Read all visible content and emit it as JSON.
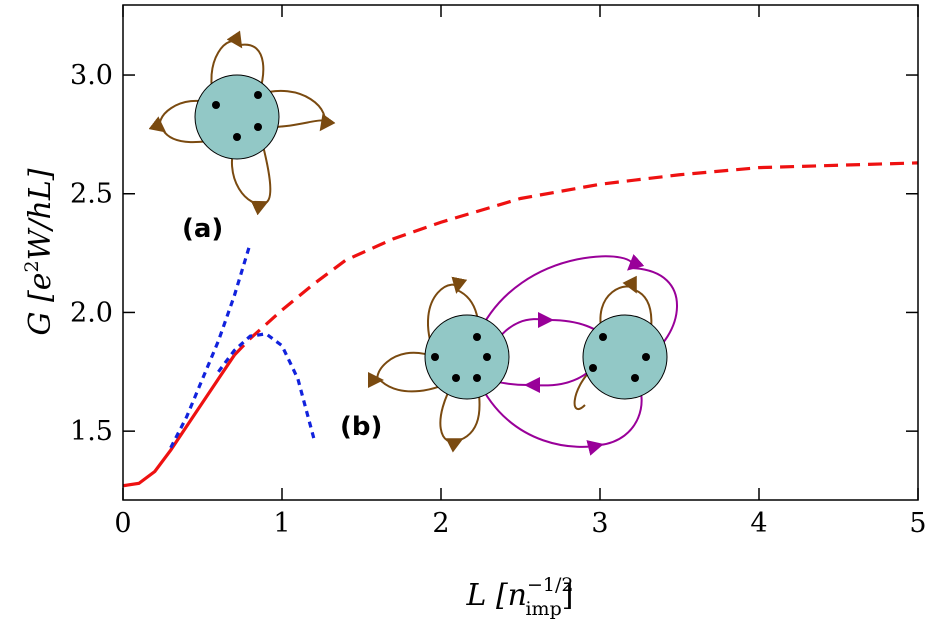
{
  "chart_data": {
    "type": "line",
    "xlabel": {
      "main": "L [n",
      "sup": "−1/2",
      "sub": "imp",
      "close": "]"
    },
    "ylabel": {
      "main": "G [e",
      "sup": "2",
      "rest": "W/hL]"
    },
    "xlim": [
      0,
      5
    ],
    "ylim": [
      1.21,
      3.295
    ],
    "xticks": [
      0,
      1,
      2,
      3,
      4,
      5
    ],
    "yticks": [
      1.5,
      {
        "value": 2,
        "label": "2.0"
      },
      2.5,
      {
        "value": 3,
        "label": "3.0"
      }
    ],
    "annotations": [
      "(a)",
      "(b)"
    ],
    "series": [
      {
        "color": "#ee1111",
        "dash": "solid",
        "x": [
          0,
          0.1,
          0.2,
          0.3,
          0.4,
          0.5,
          0.6,
          0.7
        ],
        "values": [
          1.27,
          1.28,
          1.33,
          1.42,
          1.52,
          1.62,
          1.72,
          1.82
        ]
      },
      {
        "color": "#ee1111",
        "dash": "dashed",
        "x": [
          0.7,
          0.8,
          1.0,
          1.2,
          1.4,
          1.7,
          2.0,
          2.5,
          3.0,
          3.5,
          4.0,
          4.5,
          5.0
        ],
        "values": [
          1.82,
          1.89,
          2.01,
          2.12,
          2.22,
          2.31,
          2.38,
          2.48,
          2.54,
          2.58,
          2.61,
          2.62,
          2.63
        ]
      },
      {
        "color": "#1122dd",
        "dash": "dotted",
        "x": [
          0.3,
          0.4,
          0.5,
          0.6,
          0.7,
          0.8
        ],
        "values": [
          1.43,
          1.56,
          1.72,
          1.88,
          2.07,
          2.29
        ]
      },
      {
        "color": "#1122dd",
        "dash": "dotted",
        "x": [
          0.6,
          0.7,
          0.8,
          0.9,
          1.0,
          1.1,
          1.2
        ],
        "values": [
          1.75,
          1.84,
          1.9,
          1.91,
          1.86,
          1.72,
          1.47
        ]
      }
    ]
  }
}
